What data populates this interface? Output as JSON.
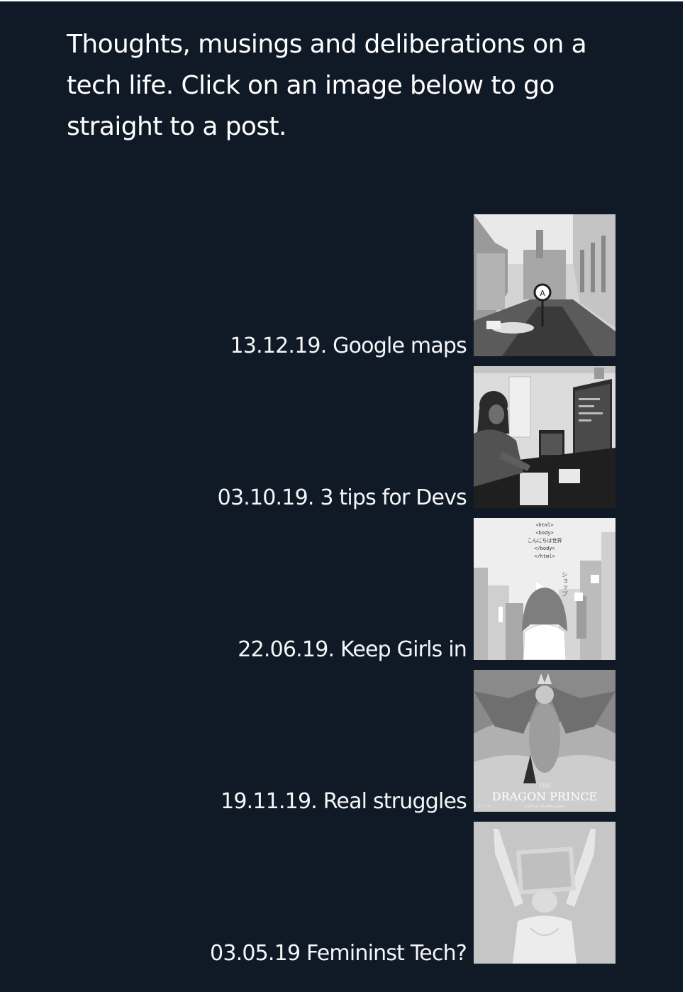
{
  "page": {
    "background": "#101a27",
    "intro": "Thoughts, musings and deliberations on a tech life. Click on an image below to go straight to a post."
  },
  "posts": [
    {
      "label": "13.12.19. Google maps",
      "thumb_icon": "street-map-photo"
    },
    {
      "label": "03.10.19. 3 tips for Devs",
      "thumb_icon": "developer-desk-photo"
    },
    {
      "label": "22.06.19. Keep Girls in",
      "thumb_icon": "girl-city-illustration",
      "code_lines": [
        "<html>",
        "<body>",
        "こんにちは世界",
        "</body>",
        "</html>"
      ],
      "sign_text": "ショップ"
    },
    {
      "label": "19.11.19. Real struggles",
      "thumb_icon": "dragon-poster",
      "poster_kicker": "THE",
      "poster_title": "DRAGON PRINCE",
      "poster_sub": "A NETFLIX ORIGINAL SERIES",
      "poster_brand": "NETFLIX"
    },
    {
      "label": "03.05.19 Femininst Tech?",
      "thumb_icon": "woman-paper-photo"
    }
  ]
}
